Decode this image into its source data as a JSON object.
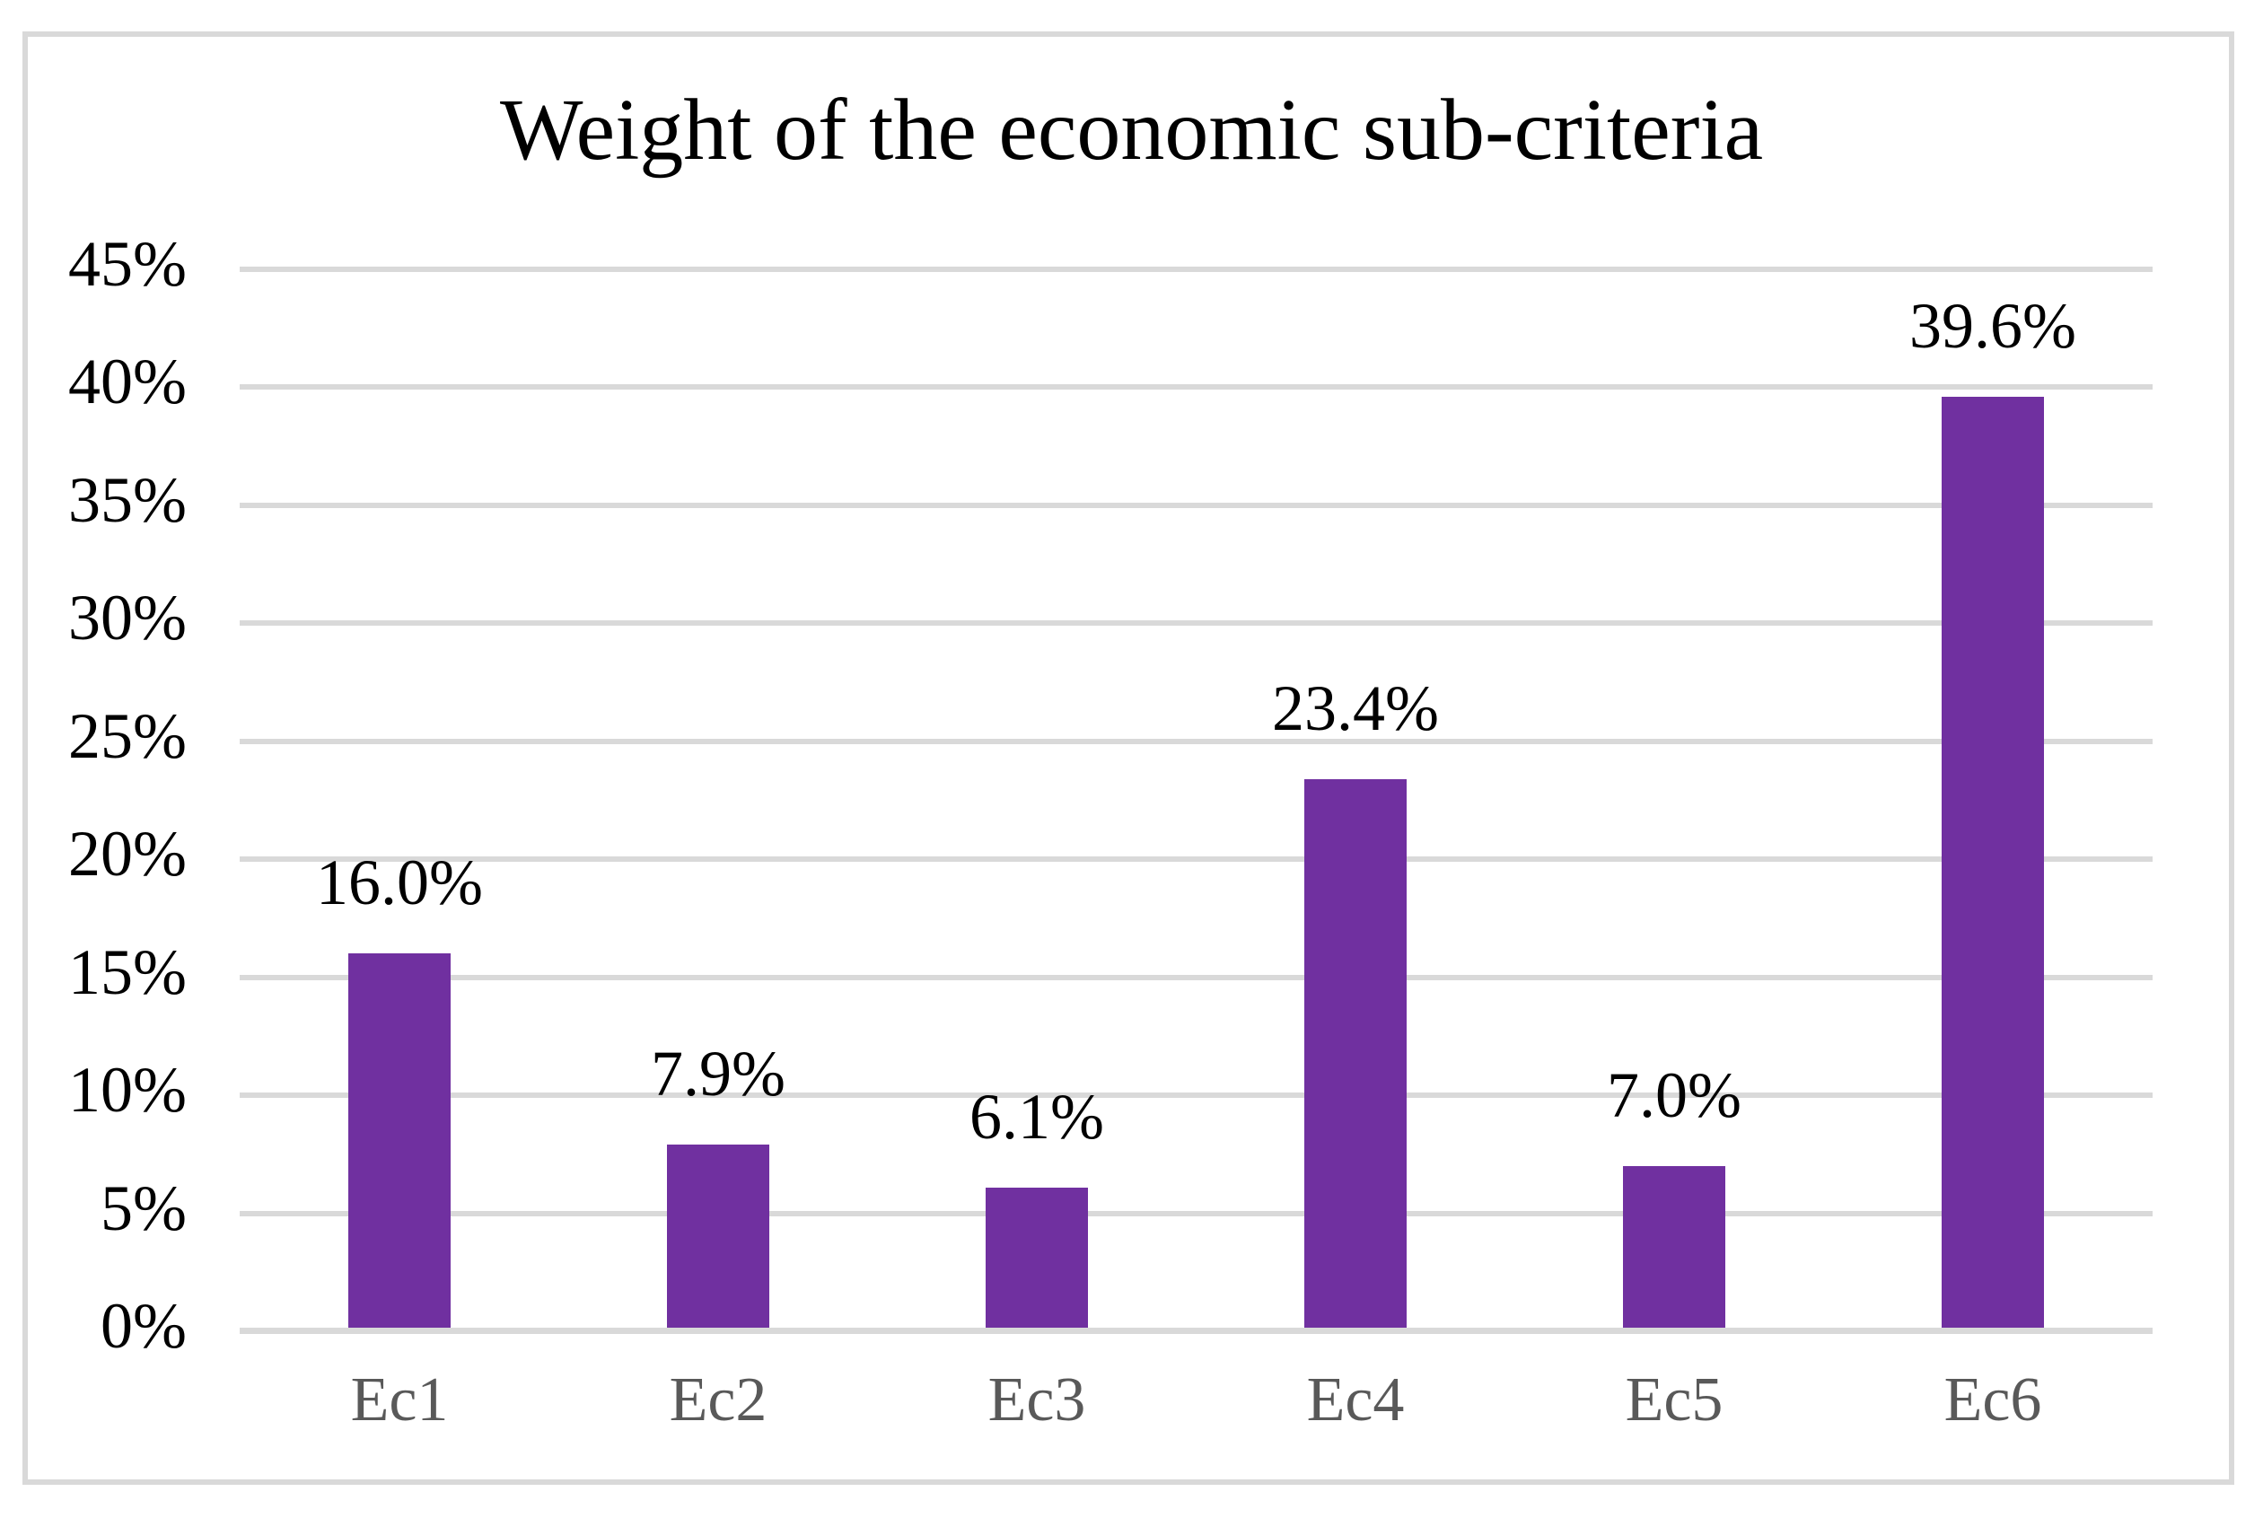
{
  "frame": {
    "border_color": "#D9D9D9",
    "background_color": "#FFFFFF"
  },
  "chart_data": {
    "type": "bar",
    "title": "Weight of the economic sub-criteria",
    "categories": [
      "Ec1",
      "Ec2",
      "Ec3",
      "Ec4",
      "Ec5",
      "Ec6"
    ],
    "values": [
      16.0,
      7.9,
      6.1,
      23.4,
      7.0,
      39.6
    ],
    "data_labels": [
      "16.0%",
      "7.9%",
      "6.1%",
      "23.4%",
      "7.0%",
      "39.6%"
    ],
    "unit": "%",
    "xlabel": "",
    "ylabel": "",
    "ylim": [
      0,
      45
    ],
    "ytick_step": 5,
    "yticks": [
      "0%",
      "5%",
      "10%",
      "15%",
      "20%",
      "25%",
      "30%",
      "35%",
      "40%",
      "45%"
    ],
    "grid": true,
    "legend_position": "none",
    "bar_color": "#7030A0",
    "gridline_color": "#D9D9D9",
    "axis_line_color": "#D9D9D9",
    "title_color": "#000000",
    "ytick_label_color": "#000000",
    "value_label_color": "#000000",
    "category_label_color": "#595959"
  }
}
